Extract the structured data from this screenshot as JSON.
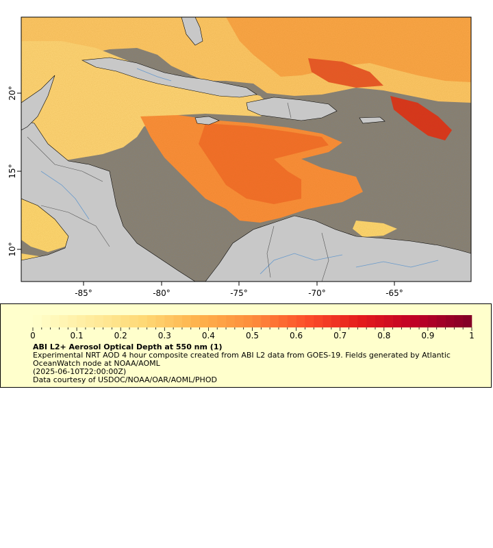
{
  "map": {
    "x_axis_labels": [
      "-85°",
      "-80°",
      "-75°",
      "-70°",
      "-65°"
    ],
    "y_axis_labels": [
      "20°",
      "15°",
      "10°"
    ],
    "colors": {
      "ocean_nodata": "#808080",
      "land": "#c8c8c8",
      "rivers": "#6699cc",
      "borders": "#555555",
      "coast": "#000000"
    }
  },
  "legend": {
    "tick_labels": [
      "0",
      "0.1",
      "0.2",
      "0.3",
      "0.4",
      "0.5",
      "0.6",
      "0.7",
      "0.8",
      "0.9",
      "1"
    ],
    "title": "ABI L2+ Aerosol Optical Depth at 550 nm (1)",
    "description": "Experimental NRT AOD 4 hour composite created from ABI L2 data from GOES-19. Fields generated by Atlantic OceanWatch node at NOAA/AOML",
    "time": "(2025-06-10T22:00:00Z)",
    "credit": "Data courtesy of USDOC/NOAA/OAR/AOML/PHOD",
    "range": [
      0,
      1
    ],
    "colormap": [
      "#ffffcc",
      "#ffeda0",
      "#fed976",
      "#feb24c",
      "#fd8d3c",
      "#fc4e2a",
      "#e31a1c",
      "#bd0026",
      "#800026"
    ]
  }
}
